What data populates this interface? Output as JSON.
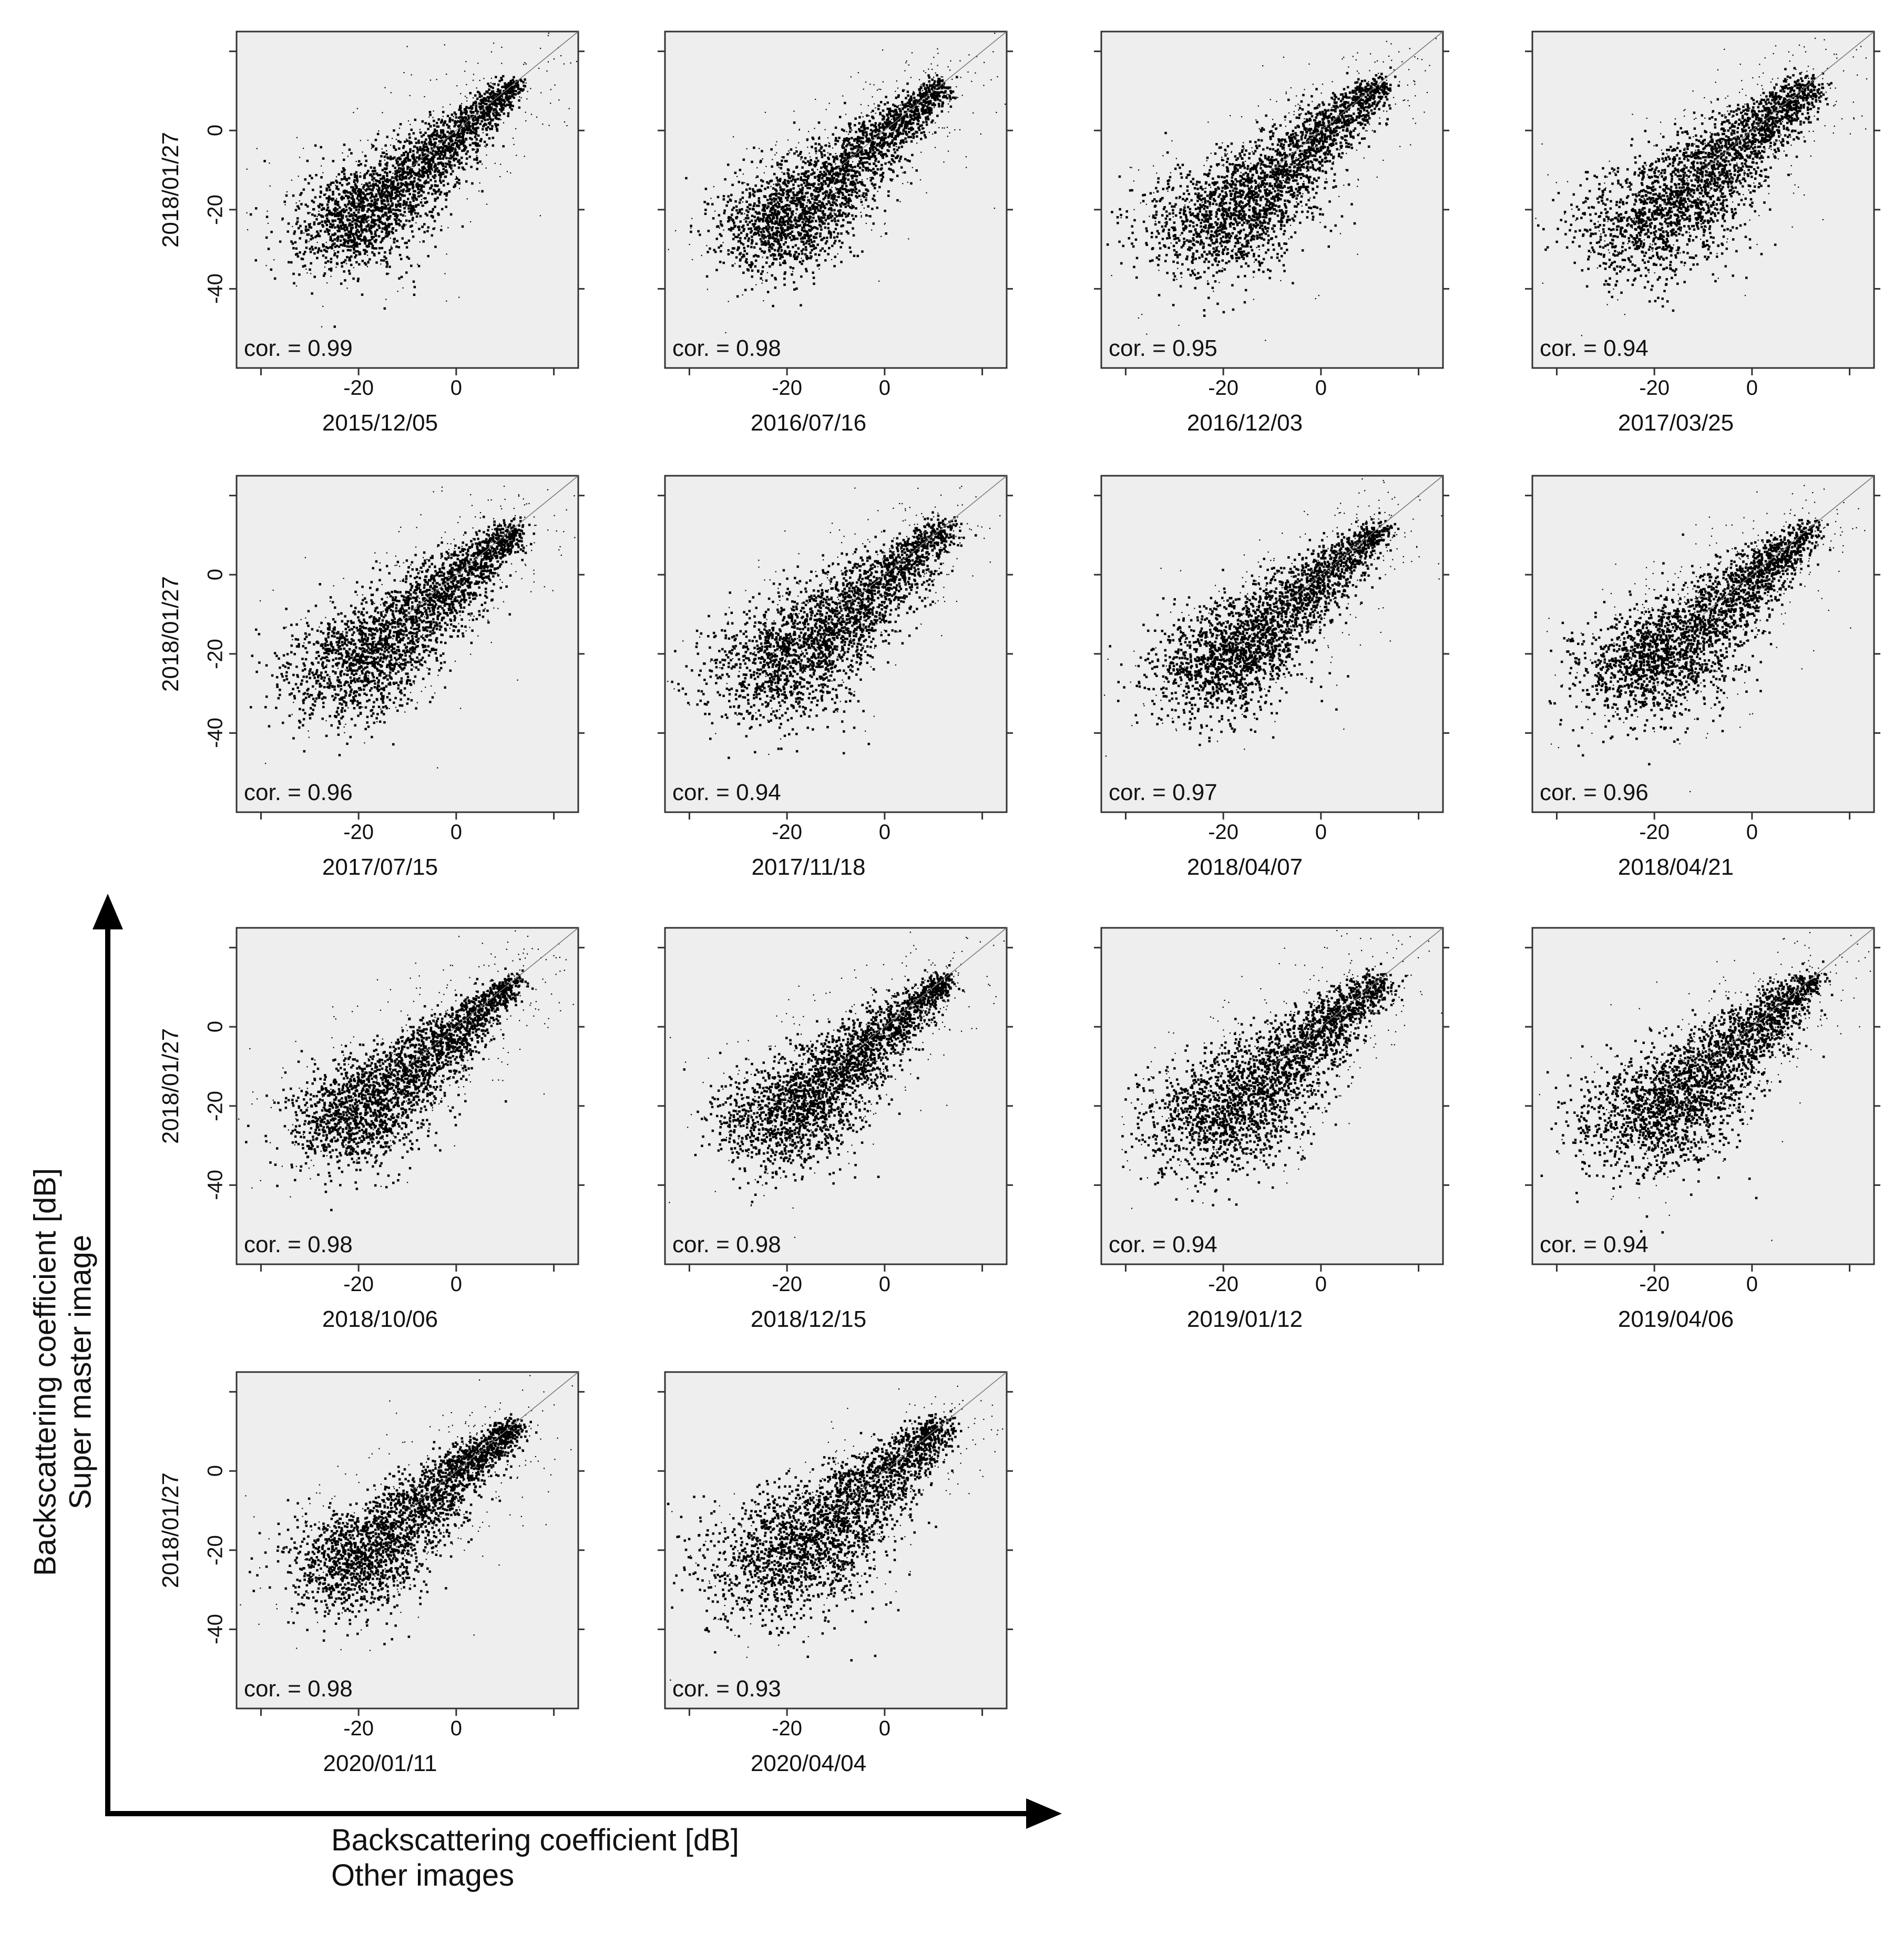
{
  "figure": {
    "x_axis_label_line1": "Backscattering coefficient [dB]",
    "x_axis_label_line2": "Other images",
    "y_axis_label_line1": "Backscattering coefficient [dB]",
    "y_axis_label_line2": "Super master image",
    "colors": {
      "plot_background": "#eeeeee",
      "points": "#000000",
      "frame": "#333333"
    }
  },
  "chart_data": {
    "type": "scatter",
    "ylabel_each_row": "2018/01/27",
    "x_ticks": [
      "-20",
      "0"
    ],
    "y_ticks": [
      "0",
      "-20",
      "-40"
    ],
    "xlim": [
      -45,
      25
    ],
    "ylim": [
      -60,
      25
    ],
    "panels": [
      {
        "date": "2015/12/05",
        "cor_label": "cor. = 0.99",
        "cor": 0.99
      },
      {
        "date": "2016/07/16",
        "cor_label": "cor. = 0.98",
        "cor": 0.98
      },
      {
        "date": "2016/12/03",
        "cor_label": "cor. = 0.95",
        "cor": 0.95
      },
      {
        "date": "2017/03/25",
        "cor_label": "cor. = 0.94",
        "cor": 0.94
      },
      {
        "date": "2017/07/15",
        "cor_label": "cor. = 0.96",
        "cor": 0.96
      },
      {
        "date": "2017/11/18",
        "cor_label": "cor. = 0.94",
        "cor": 0.94
      },
      {
        "date": "2018/04/07",
        "cor_label": "cor. = 0.97",
        "cor": 0.97
      },
      {
        "date": "2018/04/21",
        "cor_label": "cor. = 0.96",
        "cor": 0.96
      },
      {
        "date": "2018/10/06",
        "cor_label": "cor. = 0.98",
        "cor": 0.98
      },
      {
        "date": "2018/12/15",
        "cor_label": "cor. = 0.98",
        "cor": 0.98
      },
      {
        "date": "2019/01/12",
        "cor_label": "cor. = 0.94",
        "cor": 0.94
      },
      {
        "date": "2019/04/06",
        "cor_label": "cor. = 0.94",
        "cor": 0.94
      },
      {
        "date": "2020/01/11",
        "cor_label": "cor. = 0.98",
        "cor": 0.98
      },
      {
        "date": "2020/04/04",
        "cor_label": "cor. = 0.93",
        "cor": 0.93
      }
    ]
  }
}
